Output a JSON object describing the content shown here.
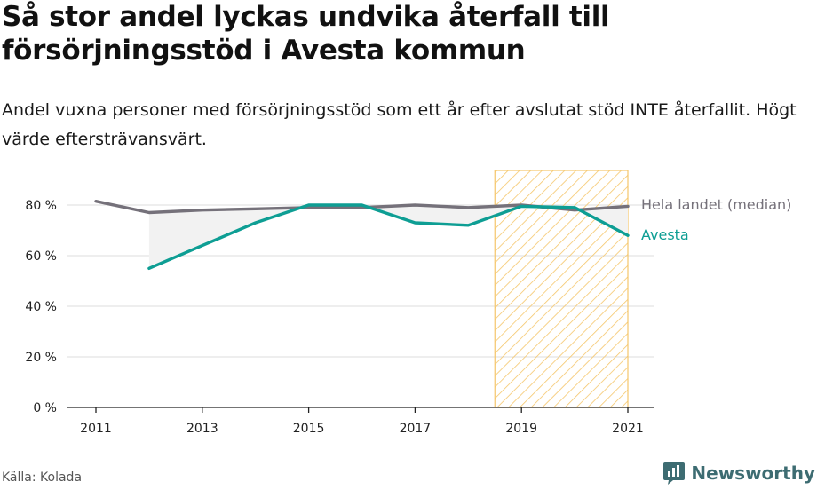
{
  "title": "Så stor andel lyckas undvika återfall till försörjningsstöd i Avesta kommun",
  "subtitle": "Andel vuxna personer med försörjningsstöd som ett år efter avslutat stöd INTE återfallit. Högt värde eftersträvansvärt.",
  "source": "Källa: Kolada",
  "brand": "Newsworthy",
  "colors": {
    "national": "#75717a",
    "avesta": "#0e9e94",
    "highlight_stroke": "#f5c66a",
    "gap_fill": "#f2f2f2",
    "grid": "#dddddd"
  },
  "chart_data": {
    "type": "line",
    "x": [
      2011,
      2012,
      2013,
      2014,
      2015,
      2016,
      2017,
      2018,
      2019,
      2020,
      2021
    ],
    "xlim": [
      2011,
      2021
    ],
    "ylim": [
      0,
      80
    ],
    "x_ticks": [
      2011,
      2013,
      2015,
      2017,
      2019,
      2021
    ],
    "y_ticks": [
      0,
      20,
      40,
      60,
      80
    ],
    "y_tick_labels": [
      "0 %",
      "20 %",
      "40 %",
      "60 %",
      "80 %"
    ],
    "grid": "horizontal",
    "highlight_period": [
      2018.5,
      2021
    ],
    "series": [
      {
        "name": "Hela landet (median)",
        "color": "#75717a",
        "values": [
          81.5,
          77,
          78,
          78.5,
          79,
          79,
          80,
          79,
          80,
          78,
          79.5
        ]
      },
      {
        "name": "Avesta",
        "color": "#0e9e94",
        "values": [
          null,
          55,
          64,
          73,
          80,
          80,
          73,
          72,
          79.5,
          79,
          68
        ]
      }
    ]
  }
}
